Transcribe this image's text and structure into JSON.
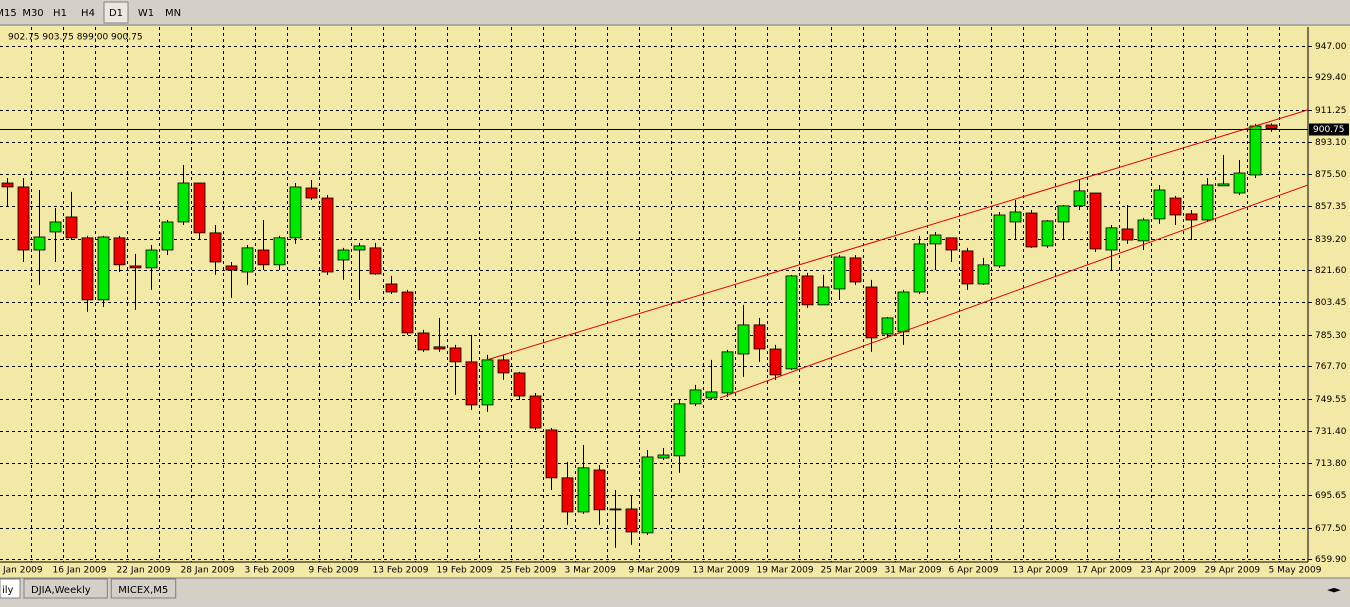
{
  "toolbar": {
    "buttons": [
      "M15",
      "M30",
      "H1",
      "H4",
      "D1",
      "W1",
      "MN"
    ],
    "active": 4
  },
  "chart_data": {
    "type": "candlestick",
    "ohlc_header": "902.75 903.75 899.00 900.75",
    "x_first_label": "Jan 2009",
    "categories": [
      null,
      null,
      null,
      "16 Jan 2009",
      null,
      null,
      null,
      "22 Jan 2009",
      null,
      null,
      null,
      "28 Jan 2009",
      null,
      null,
      null,
      "3 Feb 2009",
      null,
      null,
      null,
      "9 Feb 2009",
      null,
      null,
      null,
      "13 Feb 2009",
      null,
      null,
      null,
      "19 Feb 2009",
      null,
      null,
      null,
      "25 Feb 2009",
      null,
      null,
      null,
      "3 Mar 2009",
      null,
      null,
      null,
      "9 Mar 2009",
      null,
      null,
      null,
      "13 Mar 2009",
      null,
      null,
      null,
      "19 Mar 2009",
      null,
      null,
      null,
      "25 Mar 2009",
      null,
      null,
      null,
      "31 Mar 2009",
      null,
      null,
      null,
      "6 Apr 2009",
      null,
      null,
      null,
      "13 Apr 2009",
      null,
      null,
      null,
      "17 Apr 2009",
      null,
      null,
      null,
      "23 Apr 2009",
      null,
      null,
      null,
      "29 Apr 2009",
      null,
      null,
      null,
      "5 May 2009"
    ],
    "open": [
      870.3,
      868.1,
      832.8,
      842.9,
      851.3,
      839.6,
      804.9,
      839.6,
      823.9,
      822.8,
      832.8,
      848.5,
      870.3,
      842.4,
      823.9,
      820.5,
      832.8,
      824.5,
      839.6,
      867.5,
      861.9,
      827.2,
      832.8,
      834.0,
      813.8,
      809.3,
      786.4,
      778.6,
      778.0,
      770.2,
      746.1,
      771.3,
      764.0,
      751.1,
      732.1,
      705.3,
      686.2,
      709.7,
      687.9,
      687.9,
      674.5,
      716.4,
      717.6,
      746.7,
      750.0,
      752.8,
      774.6,
      790.9,
      777.4,
      766.3,
      818.3,
      802.1,
      811.0,
      828.4,
      812.1,
      785.8,
      787.0,
      809.3,
      836.2,
      839.6,
      832.3,
      813.8,
      823.9,
      848.5,
      853.5,
      835.1,
      848.5,
      857.5,
      864.7,
      832.8,
      844.6,
      837.9,
      850.2,
      861.9,
      853.0,
      849.6,
      868.7,
      864.7,
      874.8,
      902.75
    ],
    "high": [
      873.1,
      873.1,
      866.4,
      856.3,
      865.3,
      840.7,
      840.7,
      840.7,
      830.6,
      835.6,
      849.6,
      880.4,
      870.3,
      846.8,
      826.1,
      835.6,
      849.6,
      840.7,
      870.3,
      872.0,
      863.6,
      834.0,
      836.8,
      836.8,
      818.3,
      810.5,
      788.1,
      794.8,
      779.7,
      785.3,
      774.1,
      774.1,
      764.6,
      752.8,
      733.2,
      714.2,
      723.7,
      712.5,
      698.5,
      695.7,
      720.9,
      722.0,
      748.9,
      757.3,
      771.3,
      776.9,
      802.1,
      794.8,
      779.7,
      818.9,
      820.0,
      818.9,
      830.0,
      830.0,
      816.1,
      795.3,
      810.5,
      840.7,
      842.9,
      839.6,
      834.0,
      828.4,
      854.1,
      860.8,
      855.2,
      849.6,
      858.0,
      872.0,
      864.7,
      846.8,
      858.0,
      850.8,
      869.2,
      863.1,
      855.2,
      873.1,
      886.0,
      883.2,
      903.4,
      903.75
    ],
    "low": [
      856.9,
      826.1,
      813.3,
      826.1,
      838.4,
      798.2,
      800.9,
      820.5,
      799.3,
      810.5,
      830.0,
      846.8,
      838.4,
      818.9,
      806.0,
      813.3,
      821.6,
      821.6,
      836.2,
      860.8,
      818.9,
      816.1,
      804.9,
      818.9,
      808.2,
      785.3,
      775.8,
      775.8,
      751.7,
      743.3,
      742.2,
      760.1,
      748.9,
      732.1,
      698.5,
      679.0,
      685.1,
      679.0,
      666.1,
      667.8,
      673.4,
      715.3,
      708.1,
      745.5,
      748.9,
      750.6,
      761.8,
      770.2,
      760.1,
      765.7,
      800.4,
      802.1,
      804.9,
      813.3,
      775.8,
      783.6,
      779.7,
      808.2,
      821.6,
      826.1,
      810.5,
      813.3,
      822.8,
      838.4,
      834.0,
      834.0,
      838.4,
      855.2,
      831.7,
      821.1,
      836.2,
      832.8,
      847.4,
      846.8,
      838.4,
      848.5,
      868.7,
      863.6,
      873.1,
      899
    ],
    "close": [
      868.1,
      832.8,
      840.1,
      848.5,
      839.6,
      804.9,
      840.1,
      824.5,
      822.8,
      832.8,
      848.5,
      870.3,
      842.4,
      826.1,
      821.6,
      834.0,
      824.5,
      839.6,
      868.1,
      861.9,
      820.5,
      832.8,
      835.1,
      819.4,
      809.3,
      786.4,
      776.9,
      777.4,
      770.2,
      746.1,
      771.3,
      764.0,
      751.1,
      733.2,
      705.3,
      686.2,
      710.9,
      687.4,
      687.4,
      675.0,
      717.0,
      718.1,
      746.7,
      754.5,
      753.4,
      775.8,
      790.9,
      777.4,
      762.9,
      818.3,
      802.1,
      812.1,
      828.9,
      814.9,
      783.6,
      794.8,
      809.3,
      836.2,
      841.2,
      832.8,
      813.8,
      824.5,
      852.4,
      854.1,
      834.5,
      849.1,
      857.5,
      865.9,
      833.4,
      845.2,
      838.4,
      849.6,
      866.4,
      852.4,
      849.6,
      869.2,
      869.8,
      875.9,
      902.2,
      900.75
    ],
    "up_color": "#00e600",
    "down_color": "#ee0000",
    "trend_lines": [
      {
        "color": "#dd0000",
        "points": [
          [
            30,
            771.3
          ],
          [
            81.3125,
            911.2
          ]
        ]
      },
      {
        "color": "#dd0000",
        "points": [
          [
            44.56,
            750.0
          ],
          [
            81.3125,
            869.2
          ]
        ]
      }
    ],
    "xlim": [
      -0.4375,
      81.3125
    ],
    "ylim": [
      658.2,
      957.6
    ],
    "yticks": [
      {
        "value": 947,
        "label": "947.00"
      },
      {
        "value": 929.4,
        "label": "929.40"
      },
      911.25,
      {
        "value": 893.1,
        "label": "893.10"
      },
      {
        "value": 875.5,
        "label": "875.50"
      },
      857.35,
      {
        "value": 839.2,
        "label": "839.20"
      },
      {
        "value": 821.6,
        "label": "821.60"
      },
      803.45,
      {
        "value": 785.3,
        "label": "785.30"
      },
      {
        "value": 767.7,
        "label": "767.70"
      },
      749.55,
      {
        "value": 731.4,
        "label": "731.40"
      },
      {
        "value": 713.8,
        "label": "713.80"
      },
      695.65,
      {
        "value": 677.5,
        "label": "677.50"
      },
      {
        "value": 659.9,
        "label": "659.90"
      }
    ],
    "grid": true
  },
  "tabs": [
    "ily",
    "DJIA,Weekly",
    "MICEX,M5"
  ]
}
